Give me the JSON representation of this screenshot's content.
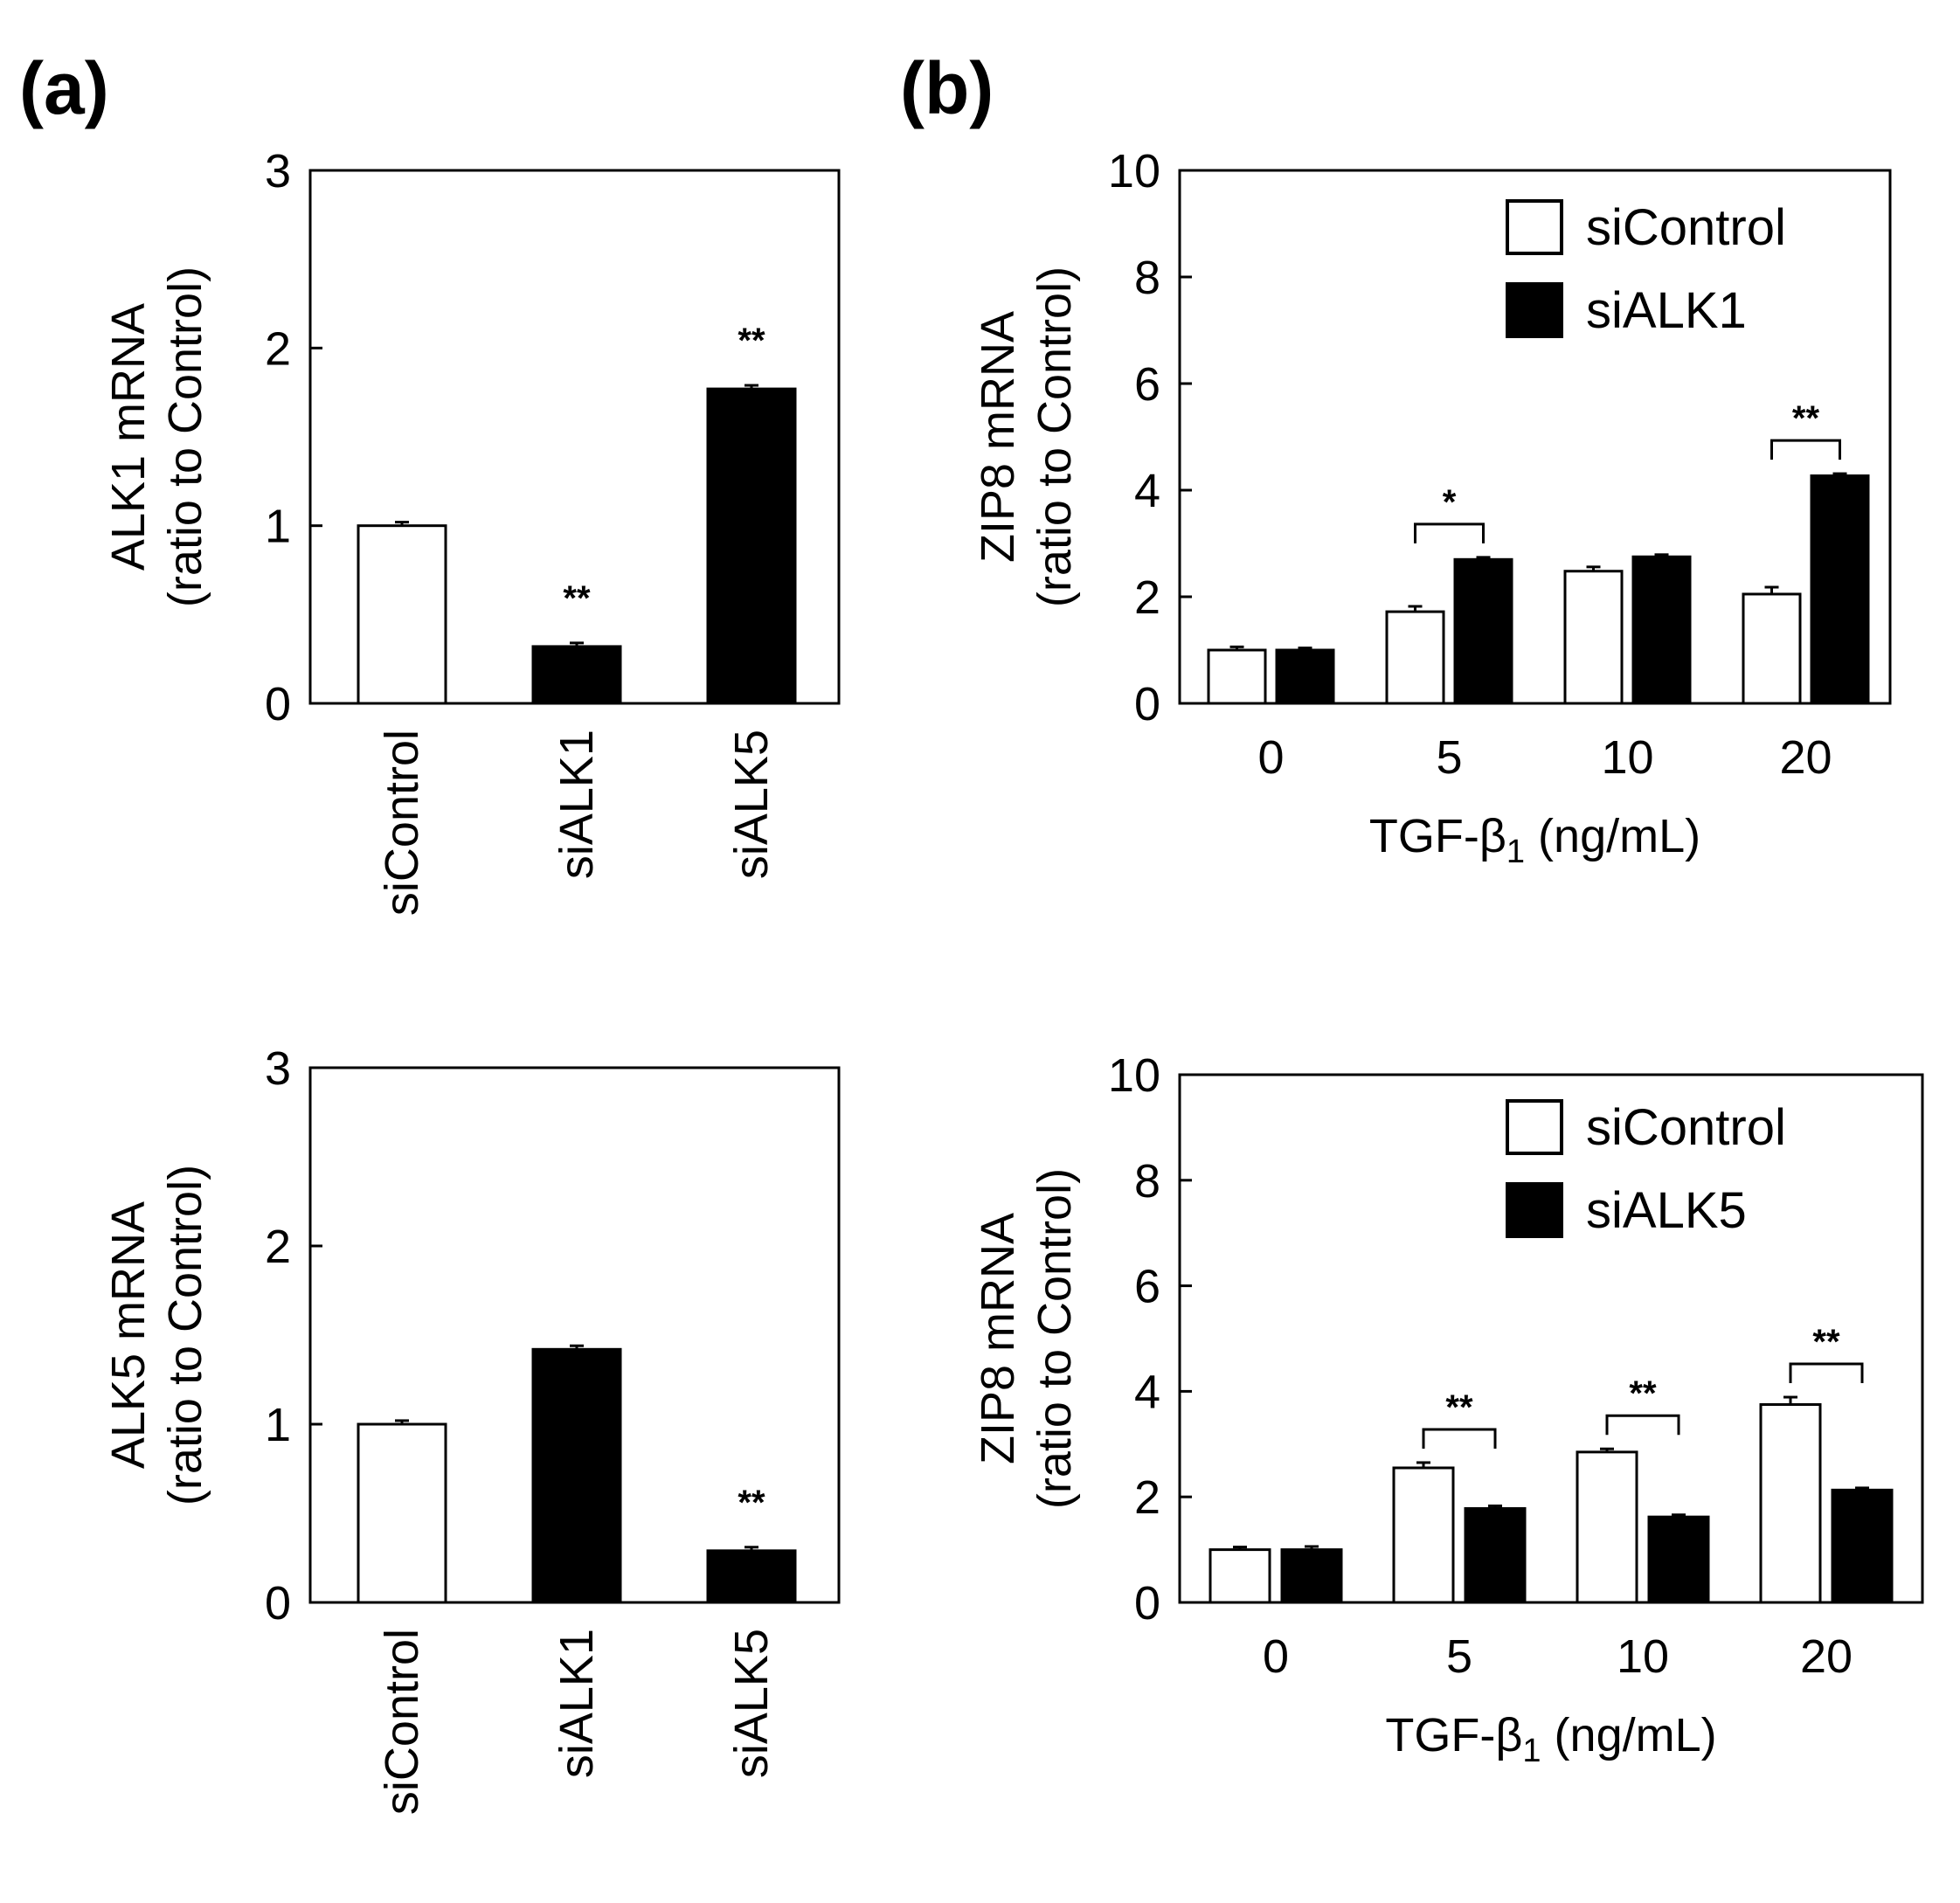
{
  "panel_labels": {
    "a": "(a)",
    "b": "(b)"
  },
  "colors": {
    "open": "#ffffff",
    "filled": "#000000",
    "stroke": "#000000"
  },
  "chart_data": [
    {
      "id": "a1",
      "type": "bar",
      "ylabel": [
        "ALK1 mRNA",
        "(ratio to Control)"
      ],
      "ylim": [
        0,
        3
      ],
      "yticks": [
        0,
        1,
        2,
        3
      ],
      "categories": [
        "siControl",
        "siALK1",
        "siALK5"
      ],
      "values": [
        1.0,
        0.32,
        1.77
      ],
      "errors": [
        0.02,
        0.02,
        0.02
      ],
      "fills": [
        "open",
        "filled",
        "filled"
      ],
      "significance": [
        "",
        "**",
        "**"
      ]
    },
    {
      "id": "a2",
      "type": "bar",
      "ylabel": [
        "ALK5 mRNA",
        "(ratio to Control)"
      ],
      "ylim": [
        0,
        3
      ],
      "yticks": [
        0,
        1,
        2,
        3
      ],
      "categories": [
        "siControl",
        "siALK1",
        "siALK5"
      ],
      "values": [
        1.0,
        1.42,
        0.29
      ],
      "errors": [
        0.02,
        0.02,
        0.02
      ],
      "fills": [
        "open",
        "filled",
        "filled"
      ],
      "significance": [
        "",
        "",
        "**"
      ]
    },
    {
      "id": "b1",
      "type": "bar",
      "ylabel": [
        "ZIP8 mRNA",
        "(ratio to Control)"
      ],
      "xlabel": "TGF-β1 (ng/mL)",
      "xlabel_base": "TGF-β",
      "xlabel_sub": "1",
      "xlabel_tail": " (ng/mL)",
      "ylim": [
        0,
        10
      ],
      "yticks": [
        0,
        2,
        4,
        6,
        8,
        10
      ],
      "categories": [
        "0",
        "5",
        "10",
        "20"
      ],
      "series": [
        {
          "name": "siControl",
          "fill": "open",
          "values": [
            1.0,
            1.72,
            2.48,
            2.05
          ],
          "errors": [
            0.06,
            0.1,
            0.08,
            0.13
          ]
        },
        {
          "name": "siALK1",
          "fill": "filled",
          "values": [
            1.0,
            2.7,
            2.75,
            4.27
          ],
          "errors": [
            0.04,
            0.04,
            0.04,
            0.04
          ]
        }
      ],
      "significance": [
        "",
        "*",
        "",
        "**"
      ],
      "legend_position": "top-right"
    },
    {
      "id": "b2",
      "type": "bar",
      "ylabel": [
        "ZIP8 mRNA",
        "(ratio to Control)"
      ],
      "xlabel": "TGF-β1 (ng/mL)",
      "xlabel_base": "TGF-β",
      "xlabel_sub": "1",
      "xlabel_tail": " (ng/mL)",
      "ylim": [
        0,
        10
      ],
      "yticks": [
        0,
        2,
        4,
        6,
        8,
        10
      ],
      "categories": [
        "0",
        "5",
        "10",
        "20"
      ],
      "series": [
        {
          "name": "siControl",
          "fill": "open",
          "values": [
            1.0,
            2.55,
            2.85,
            3.75
          ],
          "errors": [
            0.05,
            0.1,
            0.06,
            0.14
          ]
        },
        {
          "name": "siALK5",
          "fill": "filled",
          "values": [
            1.0,
            1.78,
            1.62,
            2.13
          ],
          "errors": [
            0.06,
            0.05,
            0.04,
            0.04
          ]
        }
      ],
      "significance": [
        "",
        "**",
        "**",
        "**"
      ],
      "legend_position": "top-right"
    }
  ]
}
